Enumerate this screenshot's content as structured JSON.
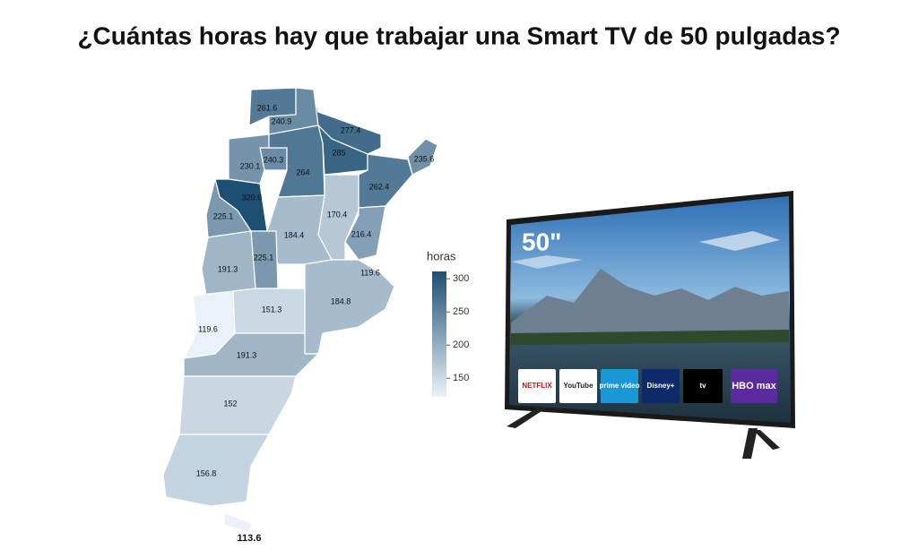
{
  "title": "¿Cuántas horas hay que trabajar una Smart TV de 50 pulgadas?",
  "chart_data": {
    "type": "choropleth",
    "values": [
      261.6,
      240.9,
      277.4,
      285,
      240.3,
      230.1,
      264,
      235.6,
      262.4,
      320.6,
      170.4,
      225.1,
      184.4,
      216.4,
      225.1,
      191.3,
      119.6,
      184.8,
      151.3,
      119.6,
      191.3,
      152,
      156.8,
      113.6
    ],
    "colorbar": {
      "title": "horas",
      "lim": [
        122,
        311
      ],
      "ticks": [
        150,
        200,
        250,
        300
      ],
      "colors": [
        "#eaf1f8",
        "#1d4f73"
      ]
    }
  },
  "tv": {
    "size_label": "50\"",
    "apps": [
      "NETFLIX",
      "YouTube",
      "prime video",
      "Disney+",
      "tv",
      "HBO max"
    ]
  }
}
